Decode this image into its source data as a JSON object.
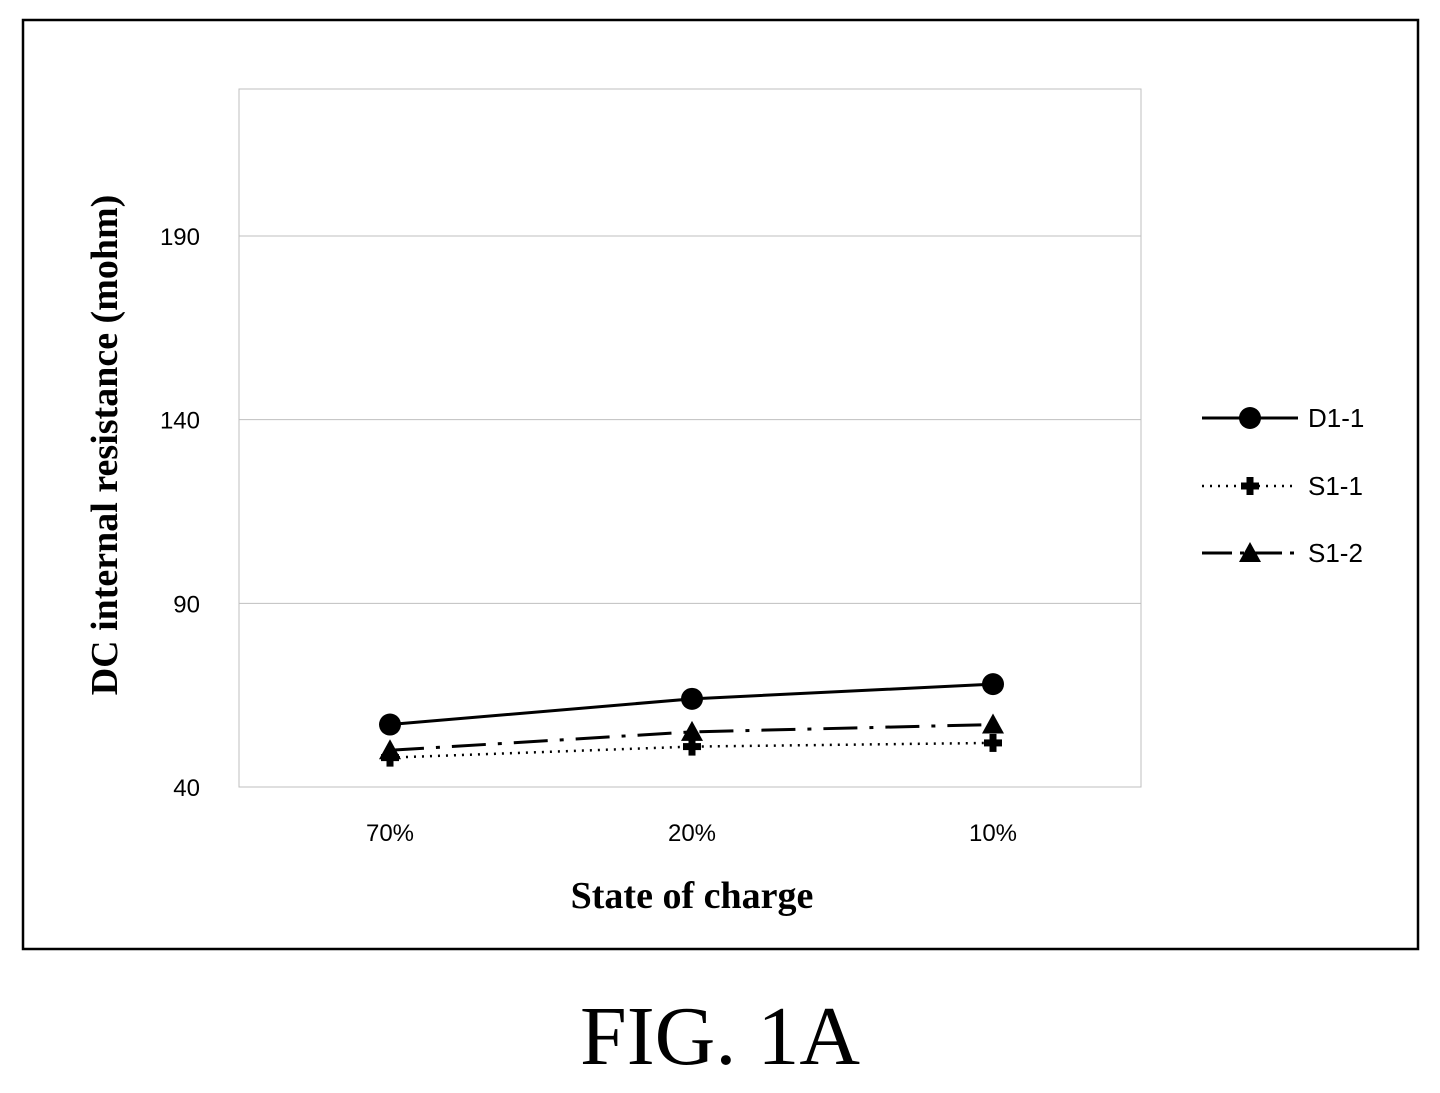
{
  "figure_label": "FIG. 1A",
  "chart_data": {
    "type": "line",
    "xlabel": "State of charge",
    "ylabel": "DC internal resistance (mohm)",
    "categories": [
      "70%",
      "20%",
      "10%"
    ],
    "ylim": [
      40,
      230
    ],
    "yticks": [
      40,
      90,
      140,
      190
    ],
    "grid": true,
    "legend_position": "right",
    "series": [
      {
        "name": "D1-1",
        "values": [
          57,
          64,
          68
        ],
        "marker": "circle",
        "line": "solid"
      },
      {
        "name": "S1-1",
        "values": [
          48,
          51,
          52
        ],
        "marker": "plus",
        "line": "dotted"
      },
      {
        "name": "S1-2",
        "values": [
          50,
          55,
          57
        ],
        "marker": "triangle",
        "line": "dash-dot"
      }
    ]
  }
}
